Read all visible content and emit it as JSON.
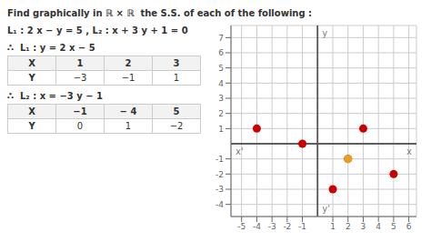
{
  "chart_data": {
    "type": "scatter",
    "title": "Find graphically in ℝ × ℝ  the S.S. of each of the following :",
    "annotations": {
      "givens": [
        "L₁ : 2 x − y = 5",
        ",",
        "L₂ : x + 3 y + 1 = 0"
      ],
      "derived": [
        "∴  L₁ : y = 2 x − 5",
        "∴  L₂ : x = −3 y − 1"
      ],
      "axis_letters": [
        "x",
        "x'",
        "y",
        "y'"
      ]
    },
    "tables": [
      {
        "header": [
          "X",
          "1",
          "2",
          "3"
        ],
        "row": [
          "Y",
          "−3",
          "−1",
          "1"
        ]
      },
      {
        "header": [
          "X",
          "−1",
          "− 4",
          "5"
        ],
        "row": [
          "Y",
          "0",
          "1",
          "−2"
        ]
      }
    ],
    "xlim": [
      -5.7,
      6.5
    ],
    "ylim": [
      -4.8,
      7.8
    ],
    "xticks": [
      -5,
      -4,
      -3,
      -2,
      -1,
      1,
      2,
      3,
      4,
      5,
      6
    ],
    "yticks": [
      -4,
      -3,
      -2,
      -1,
      1,
      2,
      3,
      4,
      5,
      6,
      7
    ],
    "grid": true,
    "series": [
      {
        "color": "#CC0000",
        "x": [
          1,
          2,
          3
        ],
        "values": [
          -3,
          -1,
          1
        ]
      },
      {
        "color": "#CC0000",
        "x": [
          -1,
          -4,
          5
        ],
        "values": [
          0,
          1,
          -2
        ]
      },
      {
        "color": "#E8A020",
        "x": [
          2
        ],
        "values": [
          -1
        ]
      }
    ]
  }
}
